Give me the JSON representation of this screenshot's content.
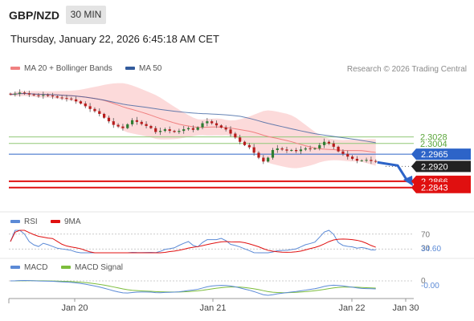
{
  "header": {
    "symbol": "GBP/NZD",
    "timeframe": "30 MIN",
    "datetime": "Thursday, January 22, 2026 6:45:18 AM CET"
  },
  "legend": {
    "ma20_label": "MA 20 + Bollinger Bands",
    "ma50_label": "MA 50",
    "credit": "Research © 2026 Trading Central",
    "rsi_label": "RSI",
    "rsi_ma_label": "9MA",
    "macd_label": "MACD",
    "macd_signal_label": "MACD Signal"
  },
  "colors": {
    "ma20": "#f08080",
    "bollinger_fill": "#fbd3d3",
    "ma50": "#335b9c",
    "candle_up": "#2e7d32",
    "candle_down": "#b71c1c",
    "level_line": "#90c877",
    "current_line": "#2d64c8",
    "target_line": "#e01010",
    "rsi": "#5b8ad6",
    "rsi_ma": "#e01010",
    "macd": "#5b8ad6",
    "macd_signal": "#7cbd3c",
    "forecast_arrow": "#2d64c8"
  },
  "chart_data": [
    {
      "type": "candlestick",
      "title": "GBP/NZD",
      "timeframe": "30 MIN",
      "x_tick_labels": [
        "Jan 20",
        "Jan 21",
        "Jan 22",
        "Jan 30"
      ],
      "ylim": [
        2.276,
        2.3235
      ],
      "closes": [
        2.3183,
        2.3186,
        2.319,
        2.3187,
        2.3183,
        2.318,
        2.3178,
        2.3181,
        2.3179,
        2.3176,
        2.3172,
        2.317,
        2.3168,
        2.3165,
        2.3158,
        2.315,
        2.314,
        2.313,
        2.3122,
        2.3112,
        2.3098,
        2.3085,
        2.3072,
        2.3066,
        2.306,
        2.3074,
        2.3089,
        2.3083,
        2.3075,
        2.3068,
        2.306,
        2.3046,
        2.305,
        2.3056,
        2.305,
        2.3046,
        2.305,
        2.3056,
        2.306,
        2.3054,
        2.3063,
        2.3078,
        2.3085,
        2.3078,
        2.307,
        2.3062,
        2.3055,
        2.304,
        2.3026,
        2.301,
        2.2998,
        2.299,
        2.297,
        2.2952,
        2.2938,
        2.2952,
        2.298,
        2.2986,
        2.2982,
        2.2978,
        2.298,
        2.2976,
        2.2982,
        2.2986,
        2.2984,
        2.2986,
        2.2998,
        2.301,
        2.3004,
        2.2992,
        2.2975,
        2.2966,
        2.2956,
        2.2948,
        2.2941,
        2.2942,
        2.2944,
        2.294,
        2.2938
      ],
      "current_price": 2.292,
      "horizontal_levels": [
        {
          "name": "resistance-2",
          "label": "2.3028",
          "value": 2.3028
        },
        {
          "name": "resistance-1",
          "label": "2.3004",
          "value": 2.3004
        },
        {
          "name": "pivot",
          "label": "2.2965",
          "value": 2.2965
        },
        {
          "name": "current",
          "label": "2.2920",
          "value": 2.292
        },
        {
          "name": "target-1",
          "label": "2.2866",
          "value": 2.2866
        },
        {
          "name": "target-2",
          "label": "2.2843",
          "value": 2.2843
        }
      ],
      "series": [
        {
          "name": "MA 20 + Bollinger Bands"
        },
        {
          "name": "MA 50"
        }
      ],
      "forecast_direction": "down"
    },
    {
      "type": "line",
      "title": "RSI",
      "series": [
        {
          "name": "RSI"
        },
        {
          "name": "9MA"
        }
      ],
      "levels": [
        70,
        30
      ],
      "level_labels": [
        "70",
        "30"
      ],
      "current_value": 34.6,
      "current_value_label": "34.60"
    },
    {
      "type": "line",
      "title": "MACD",
      "series": [
        {
          "name": "MACD"
        },
        {
          "name": "MACD Signal"
        }
      ],
      "zero_label": "0",
      "current_value": -0.0,
      "current_value_label": "-0.00"
    }
  ]
}
